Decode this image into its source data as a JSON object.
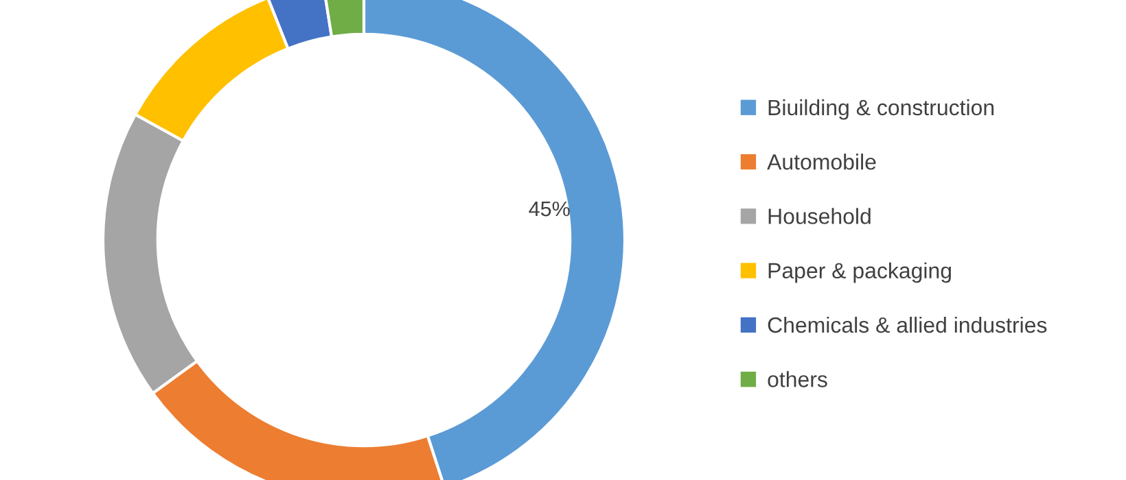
{
  "chart_data": {
    "type": "donut",
    "categories": [
      "Biuilding & construction",
      "Automobile",
      "Household",
      "Paper & packaging",
      "Chemicals & allied industries",
      "others"
    ],
    "values": [
      45,
      20,
      18,
      11,
      3.5,
      2.5
    ],
    "colors": [
      "#5b9bd5",
      "#ed7d31",
      "#a5a5a5",
      "#ffc000",
      "#4472c4",
      "#70ad47"
    ],
    "value_labels": [
      "45%",
      null,
      null,
      null,
      null,
      null
    ],
    "legend": "right"
  }
}
